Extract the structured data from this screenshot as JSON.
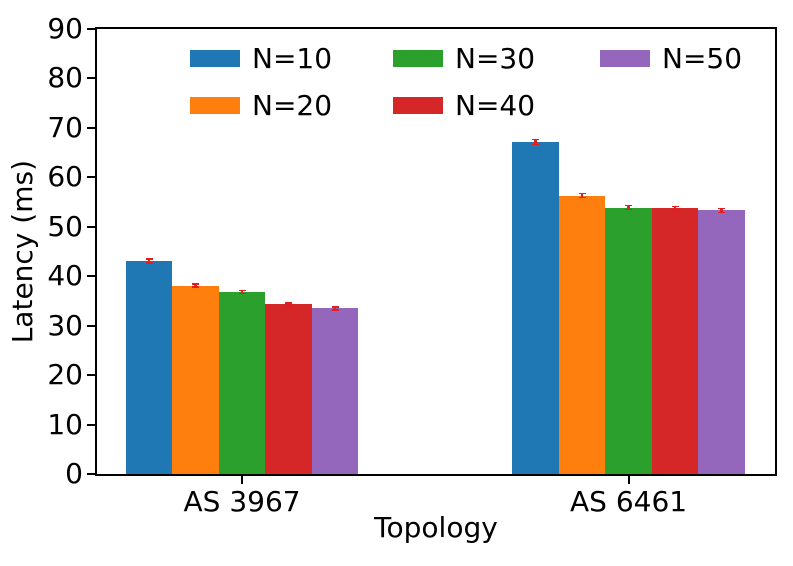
{
  "chart_data": {
    "type": "bar",
    "title": "",
    "xlabel": "Topology",
    "ylabel": "Latency (ms)",
    "categories": [
      "AS 3967",
      "AS 6461"
    ],
    "series": [
      {
        "name": "N=10",
        "color": "#1f77b4",
        "values": [
          43.1,
          67.2
        ],
        "errors": [
          0.4,
          0.5
        ]
      },
      {
        "name": "N=20",
        "color": "#ff7f0e",
        "values": [
          38.1,
          56.3
        ],
        "errors": [
          0.3,
          0.4
        ]
      },
      {
        "name": "N=30",
        "color": "#2ca02c",
        "values": [
          36.8,
          53.9
        ],
        "errors": [
          0.3,
          0.4
        ]
      },
      {
        "name": "N=40",
        "color": "#d62728",
        "values": [
          34.3,
          53.7
        ],
        "errors": [
          0.3,
          0.4
        ]
      },
      {
        "name": "N=50",
        "color": "#9467bd",
        "values": [
          33.5,
          53.3
        ],
        "errors": [
          0.3,
          0.4
        ]
      }
    ],
    "error_bar_color": "#e01f1f",
    "ylim": [
      0,
      90
    ],
    "yticks": [
      0,
      10,
      20,
      30,
      40,
      50,
      60,
      70,
      80,
      90
    ],
    "grid": false,
    "legend": {
      "position": "upper center inside plot",
      "ncol": 3,
      "order": "column-major",
      "frame": false
    }
  }
}
